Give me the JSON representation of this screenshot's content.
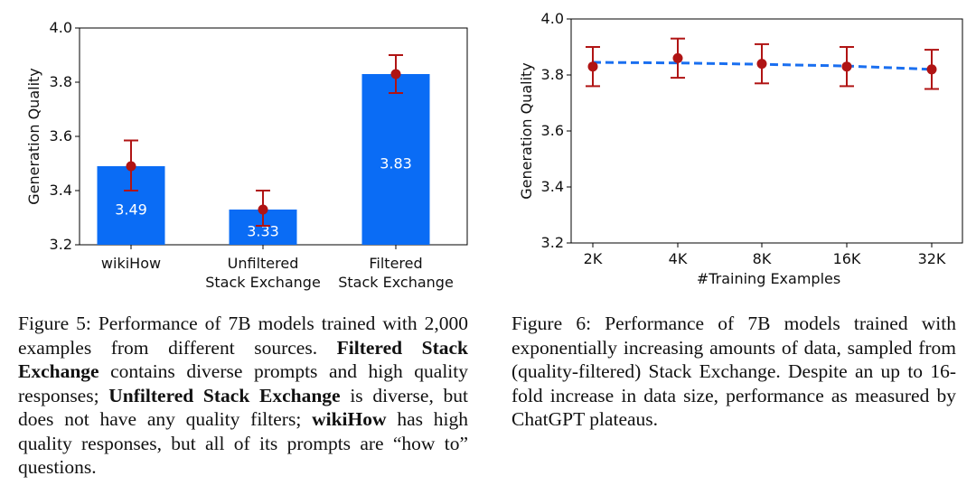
{
  "chart_data": [
    {
      "type": "bar",
      "categories": [
        "wikiHow",
        "Unfiltered\nStack Exchange",
        "Filtered\nStack Exchange"
      ],
      "values": [
        3.49,
        3.33,
        3.83
      ],
      "value_labels": [
        "3.49",
        "3.33",
        "3.83"
      ],
      "error_low": [
        3.4,
        3.27,
        3.76
      ],
      "error_high": [
        3.585,
        3.4,
        3.9
      ],
      "ylabel": "Generation Quality",
      "xlabel": "",
      "ylim": [
        3.2,
        4.0
      ],
      "yticks": [
        "3.2",
        "3.4",
        "3.6",
        "3.8",
        "4.0"
      ],
      "bar_color": "#0a6cf5",
      "error_color": "#b01414"
    },
    {
      "type": "line",
      "x": [
        "2K",
        "4K",
        "8K",
        "16K",
        "32K"
      ],
      "points": [
        3.83,
        3.86,
        3.84,
        3.83,
        3.82
      ],
      "error_low": [
        3.76,
        3.79,
        3.77,
        3.76,
        3.75
      ],
      "error_high": [
        3.9,
        3.93,
        3.91,
        3.9,
        3.89
      ],
      "trend": [
        3.845,
        3.843,
        3.838,
        3.832,
        3.82
      ],
      "xlabel": "#Training Examples",
      "ylabel": "Generation Quality",
      "ylim": [
        3.2,
        4.0
      ],
      "yticks": [
        "3.2",
        "3.4",
        "3.6",
        "3.8",
        "4.0"
      ],
      "line_color": "#1a6ff0",
      "point_color": "#b01414"
    }
  ],
  "captions": {
    "fig5": [
      {
        "text": "Figure 5: Performance of 7B models trained with 2,000 examples from different sources. ",
        "bold": false
      },
      {
        "text": "Filtered Stack Exchange",
        "bold": true
      },
      {
        "text": " contains diverse prompts and high quality responses; ",
        "bold": false
      },
      {
        "text": "Unfiltered Stack Exchange",
        "bold": true
      },
      {
        "text": " is diverse, but does not have any quality filters; ",
        "bold": false
      },
      {
        "text": "wikiHow",
        "bold": true
      },
      {
        "text": " has high quality responses, but all of its prompts are “how to” questions.",
        "bold": false
      }
    ],
    "fig6": "Figure 6: Performance of 7B models trained with exponentially increasing amounts of data, sampled from (quality-filtered) Stack Exchange. Despite an up to 16-fold increase in data size, performance as measured by ChatGPT plateaus."
  }
}
